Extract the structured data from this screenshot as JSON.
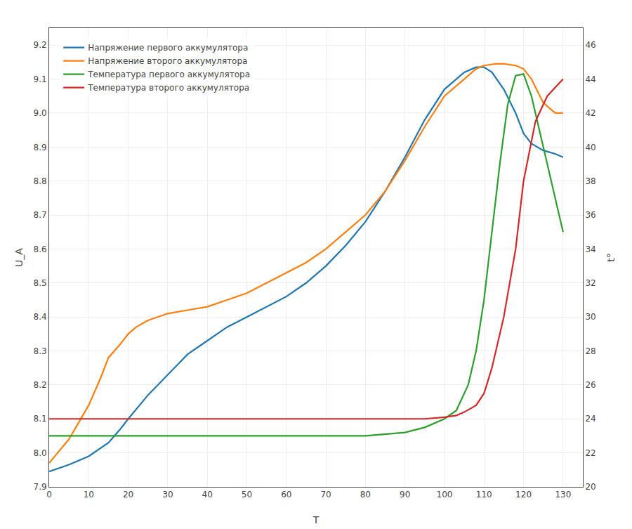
{
  "chart_data": {
    "type": "line",
    "xlabel": "T",
    "ylabel": "U_A",
    "y2label": "t°",
    "xlim": [
      0,
      135
    ],
    "xticks": [
      0,
      10,
      20,
      30,
      40,
      50,
      60,
      70,
      80,
      90,
      100,
      110,
      120,
      130
    ],
    "ylim": [
      7.9,
      9.25
    ],
    "yticks": [
      7.9,
      {
        "value": 8.0,
        "label": "8.0"
      },
      8.1,
      8.2,
      8.3,
      8.4,
      8.5,
      8.6,
      8.7,
      8.8,
      8.9,
      {
        "value": 9.0,
        "label": "9.0"
      },
      9.1,
      9.2
    ],
    "y2lim": [
      20,
      47
    ],
    "y2ticks": [
      20,
      22,
      24,
      26,
      28,
      30,
      32,
      34,
      36,
      38,
      40,
      42,
      44,
      46
    ],
    "grid": true,
    "legend": "upper left",
    "series": [
      {
        "name": "Напряжение первого аккумулятора",
        "x": [
          0,
          5,
          10,
          15,
          18,
          20,
          25,
          30,
          35,
          40,
          45,
          50,
          55,
          60,
          65,
          70,
          75,
          80,
          85,
          90,
          95,
          100,
          105,
          108,
          110,
          112,
          115,
          118,
          120,
          122,
          125,
          128,
          130
        ],
        "values": [
          7.945,
          7.965,
          7.99,
          8.03,
          8.07,
          8.1,
          8.17,
          8.23,
          8.29,
          8.33,
          8.37,
          8.4,
          8.43,
          8.46,
          8.5,
          8.55,
          8.61,
          8.68,
          8.77,
          8.87,
          8.98,
          9.07,
          9.12,
          9.135,
          9.135,
          9.12,
          9.07,
          9.0,
          8.94,
          8.91,
          8.89,
          8.88,
          8.87
        ]
      },
      {
        "name": "Напряжение второго аккумулятора",
        "x": [
          0,
          5,
          10,
          13,
          15,
          18,
          20,
          22,
          25,
          30,
          35,
          40,
          45,
          50,
          55,
          60,
          65,
          70,
          75,
          80,
          85,
          90,
          95,
          100,
          105,
          108,
          110,
          113,
          115,
          118,
          120,
          122,
          125,
          128,
          130
        ],
        "values": [
          7.97,
          8.04,
          8.14,
          8.22,
          8.28,
          8.32,
          8.35,
          8.37,
          8.39,
          8.41,
          8.42,
          8.43,
          8.45,
          8.47,
          8.5,
          8.53,
          8.56,
          8.6,
          8.65,
          8.7,
          8.77,
          8.86,
          8.96,
          9.05,
          9.1,
          9.13,
          9.14,
          9.145,
          9.145,
          9.14,
          9.13,
          9.1,
          9.03,
          9.0,
          9.0
        ]
      },
      {
        "name": "Температура первого аккумулятора",
        "axis": "y2",
        "x": [
          0,
          10,
          20,
          30,
          40,
          50,
          60,
          70,
          80,
          90,
          95,
          100,
          103,
          106,
          108,
          110,
          112,
          114,
          116,
          118,
          120,
          122,
          125,
          130
        ],
        "values": [
          23,
          23,
          23,
          23,
          23,
          23,
          23,
          23,
          23,
          23.2,
          23.5,
          24,
          24.5,
          26,
          28,
          31,
          35,
          39,
          42.5,
          44.2,
          44.3,
          43,
          40,
          35
        ]
      },
      {
        "name": "Температура второго аккумулятора",
        "axis": "y2",
        "x": [
          0,
          10,
          20,
          30,
          40,
          50,
          60,
          70,
          80,
          90,
          95,
          100,
          103,
          105,
          108,
          110,
          112,
          115,
          118,
          120,
          123,
          126,
          128,
          130
        ],
        "values": [
          24,
          24,
          24,
          24,
          24,
          24,
          24,
          24,
          24,
          24,
          24,
          24.1,
          24.2,
          24.4,
          24.8,
          25.5,
          27,
          30,
          34,
          38,
          41.5,
          43,
          43.5,
          44
        ]
      }
    ]
  }
}
